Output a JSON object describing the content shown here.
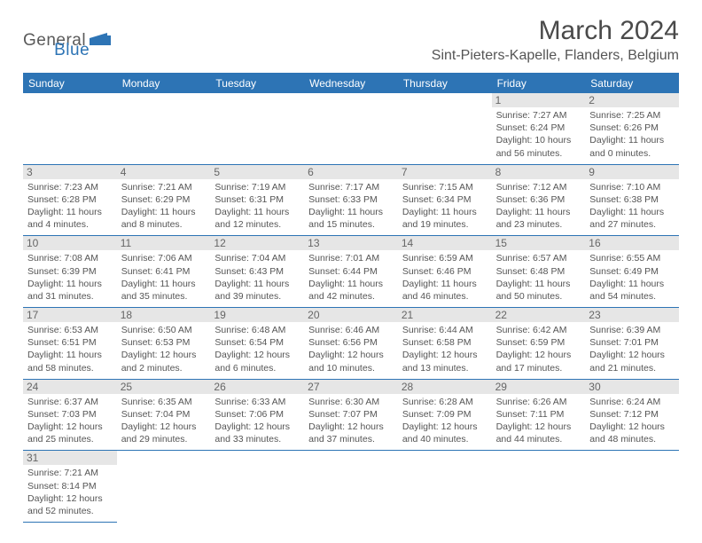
{
  "logo": {
    "name": "General",
    "suffix": "Blue"
  },
  "header": {
    "month_year": "March 2024",
    "location": "Sint-Pieters-Kapelle, Flanders, Belgium"
  },
  "day_names": [
    "Sunday",
    "Monday",
    "Tuesday",
    "Wednesday",
    "Thursday",
    "Friday",
    "Saturday"
  ],
  "colors": {
    "accent": "#2d74b5",
    "header_text": "#ffffff",
    "daynum_bg": "#e6e6e6",
    "text_muted": "#555555",
    "border": "#2d74b5"
  },
  "weeks": [
    [
      null,
      null,
      null,
      null,
      null,
      {
        "day": "1",
        "sunrise": "Sunrise: 7:27 AM",
        "sunset": "Sunset: 6:24 PM",
        "day1": "Daylight: 10 hours",
        "day2": "and 56 minutes."
      },
      {
        "day": "2",
        "sunrise": "Sunrise: 7:25 AM",
        "sunset": "Sunset: 6:26 PM",
        "day1": "Daylight: 11 hours",
        "day2": "and 0 minutes."
      }
    ],
    [
      {
        "day": "3",
        "sunrise": "Sunrise: 7:23 AM",
        "sunset": "Sunset: 6:28 PM",
        "day1": "Daylight: 11 hours",
        "day2": "and 4 minutes."
      },
      {
        "day": "4",
        "sunrise": "Sunrise: 7:21 AM",
        "sunset": "Sunset: 6:29 PM",
        "day1": "Daylight: 11 hours",
        "day2": "and 8 minutes."
      },
      {
        "day": "5",
        "sunrise": "Sunrise: 7:19 AM",
        "sunset": "Sunset: 6:31 PM",
        "day1": "Daylight: 11 hours",
        "day2": "and 12 minutes."
      },
      {
        "day": "6",
        "sunrise": "Sunrise: 7:17 AM",
        "sunset": "Sunset: 6:33 PM",
        "day1": "Daylight: 11 hours",
        "day2": "and 15 minutes."
      },
      {
        "day": "7",
        "sunrise": "Sunrise: 7:15 AM",
        "sunset": "Sunset: 6:34 PM",
        "day1": "Daylight: 11 hours",
        "day2": "and 19 minutes."
      },
      {
        "day": "8",
        "sunrise": "Sunrise: 7:12 AM",
        "sunset": "Sunset: 6:36 PM",
        "day1": "Daylight: 11 hours",
        "day2": "and 23 minutes."
      },
      {
        "day": "9",
        "sunrise": "Sunrise: 7:10 AM",
        "sunset": "Sunset: 6:38 PM",
        "day1": "Daylight: 11 hours",
        "day2": "and 27 minutes."
      }
    ],
    [
      {
        "day": "10",
        "sunrise": "Sunrise: 7:08 AM",
        "sunset": "Sunset: 6:39 PM",
        "day1": "Daylight: 11 hours",
        "day2": "and 31 minutes."
      },
      {
        "day": "11",
        "sunrise": "Sunrise: 7:06 AM",
        "sunset": "Sunset: 6:41 PM",
        "day1": "Daylight: 11 hours",
        "day2": "and 35 minutes."
      },
      {
        "day": "12",
        "sunrise": "Sunrise: 7:04 AM",
        "sunset": "Sunset: 6:43 PM",
        "day1": "Daylight: 11 hours",
        "day2": "and 39 minutes."
      },
      {
        "day": "13",
        "sunrise": "Sunrise: 7:01 AM",
        "sunset": "Sunset: 6:44 PM",
        "day1": "Daylight: 11 hours",
        "day2": "and 42 minutes."
      },
      {
        "day": "14",
        "sunrise": "Sunrise: 6:59 AM",
        "sunset": "Sunset: 6:46 PM",
        "day1": "Daylight: 11 hours",
        "day2": "and 46 minutes."
      },
      {
        "day": "15",
        "sunrise": "Sunrise: 6:57 AM",
        "sunset": "Sunset: 6:48 PM",
        "day1": "Daylight: 11 hours",
        "day2": "and 50 minutes."
      },
      {
        "day": "16",
        "sunrise": "Sunrise: 6:55 AM",
        "sunset": "Sunset: 6:49 PM",
        "day1": "Daylight: 11 hours",
        "day2": "and 54 minutes."
      }
    ],
    [
      {
        "day": "17",
        "sunrise": "Sunrise: 6:53 AM",
        "sunset": "Sunset: 6:51 PM",
        "day1": "Daylight: 11 hours",
        "day2": "and 58 minutes."
      },
      {
        "day": "18",
        "sunrise": "Sunrise: 6:50 AM",
        "sunset": "Sunset: 6:53 PM",
        "day1": "Daylight: 12 hours",
        "day2": "and 2 minutes."
      },
      {
        "day": "19",
        "sunrise": "Sunrise: 6:48 AM",
        "sunset": "Sunset: 6:54 PM",
        "day1": "Daylight: 12 hours",
        "day2": "and 6 minutes."
      },
      {
        "day": "20",
        "sunrise": "Sunrise: 6:46 AM",
        "sunset": "Sunset: 6:56 PM",
        "day1": "Daylight: 12 hours",
        "day2": "and 10 minutes."
      },
      {
        "day": "21",
        "sunrise": "Sunrise: 6:44 AM",
        "sunset": "Sunset: 6:58 PM",
        "day1": "Daylight: 12 hours",
        "day2": "and 13 minutes."
      },
      {
        "day": "22",
        "sunrise": "Sunrise: 6:42 AM",
        "sunset": "Sunset: 6:59 PM",
        "day1": "Daylight: 12 hours",
        "day2": "and 17 minutes."
      },
      {
        "day": "23",
        "sunrise": "Sunrise: 6:39 AM",
        "sunset": "Sunset: 7:01 PM",
        "day1": "Daylight: 12 hours",
        "day2": "and 21 minutes."
      }
    ],
    [
      {
        "day": "24",
        "sunrise": "Sunrise: 6:37 AM",
        "sunset": "Sunset: 7:03 PM",
        "day1": "Daylight: 12 hours",
        "day2": "and 25 minutes."
      },
      {
        "day": "25",
        "sunrise": "Sunrise: 6:35 AM",
        "sunset": "Sunset: 7:04 PM",
        "day1": "Daylight: 12 hours",
        "day2": "and 29 minutes."
      },
      {
        "day": "26",
        "sunrise": "Sunrise: 6:33 AM",
        "sunset": "Sunset: 7:06 PM",
        "day1": "Daylight: 12 hours",
        "day2": "and 33 minutes."
      },
      {
        "day": "27",
        "sunrise": "Sunrise: 6:30 AM",
        "sunset": "Sunset: 7:07 PM",
        "day1": "Daylight: 12 hours",
        "day2": "and 37 minutes."
      },
      {
        "day": "28",
        "sunrise": "Sunrise: 6:28 AM",
        "sunset": "Sunset: 7:09 PM",
        "day1": "Daylight: 12 hours",
        "day2": "and 40 minutes."
      },
      {
        "day": "29",
        "sunrise": "Sunrise: 6:26 AM",
        "sunset": "Sunset: 7:11 PM",
        "day1": "Daylight: 12 hours",
        "day2": "and 44 minutes."
      },
      {
        "day": "30",
        "sunrise": "Sunrise: 6:24 AM",
        "sunset": "Sunset: 7:12 PM",
        "day1": "Daylight: 12 hours",
        "day2": "and 48 minutes."
      }
    ],
    [
      {
        "day": "31",
        "sunrise": "Sunrise: 7:21 AM",
        "sunset": "Sunset: 8:14 PM",
        "day1": "Daylight: 12 hours",
        "day2": "and 52 minutes."
      },
      null,
      null,
      null,
      null,
      null,
      null
    ]
  ]
}
